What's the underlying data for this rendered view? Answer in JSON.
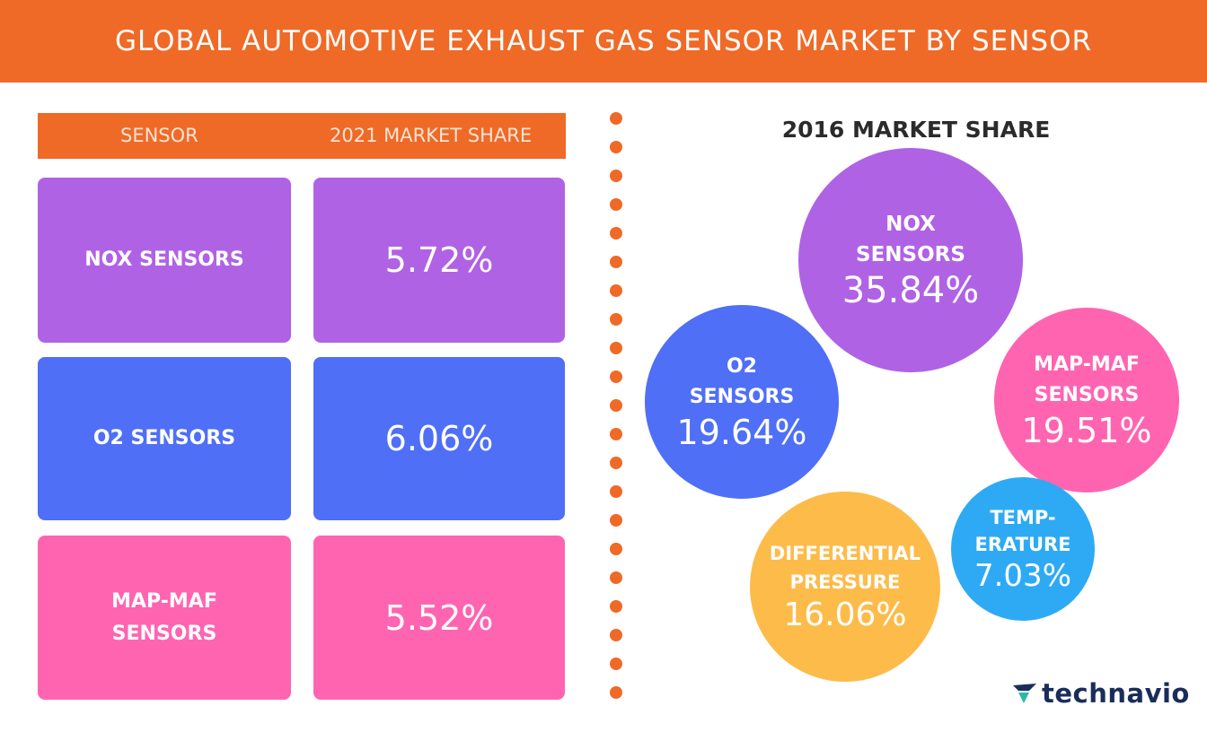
{
  "title": "GLOBAL AUTOMOTIVE EXHAUST GAS SENSOR MARKET BY SENSOR",
  "table": {
    "header_sensor": "SENSOR",
    "header_share": "2021 MARKET SHARE",
    "rows": [
      {
        "name": "NOX SENSORS",
        "value": "5.72%",
        "color": "#b062e4"
      },
      {
        "name": "O2 SENSORS",
        "value": "6.06%",
        "color": "#4f6ff6"
      },
      {
        "name": "MAP-MAF\nSENSORS",
        "value": "5.52%",
        "color": "#ff64b1"
      }
    ]
  },
  "bubbles_title": "2016 MARKET SHARE",
  "chart_data": {
    "type": "bubble",
    "title": "2016 MARKET SHARE",
    "categories": [
      "NOX SENSORS",
      "O2 SENSORS",
      "MAP-MAF SENSORS",
      "DIFFERENTIAL PRESSURE",
      "TEMPERATURE"
    ],
    "values": [
      35.84,
      19.64,
      19.51,
      16.06,
      7.03
    ],
    "labels": [
      "NOX\nSENSORS",
      "O2\nSENSORS",
      "MAP-MAF\nSENSORS",
      "DIFFERENTIAL\nPRESSURE",
      "TEMP-\nERATURE"
    ],
    "value_labels": [
      "35.84%",
      "19.64%",
      "19.51%",
      "16.06%",
      "7.03%"
    ],
    "colors": [
      "#b062e4",
      "#4f6ff6",
      "#ff64b1",
      "#fdbb4a",
      "#2eaaf5"
    ],
    "secondary_series": {
      "name": "2021 MARKET SHARE",
      "categories": [
        "NOX SENSORS",
        "O2 SENSORS",
        "MAP-MAF SENSORS"
      ],
      "values": [
        5.72,
        6.06,
        5.52
      ]
    }
  },
  "logo": {
    "text_a": "tech",
    "text_b": "navio",
    "color": "#1a2d5a",
    "accent": "#2db9a5"
  }
}
